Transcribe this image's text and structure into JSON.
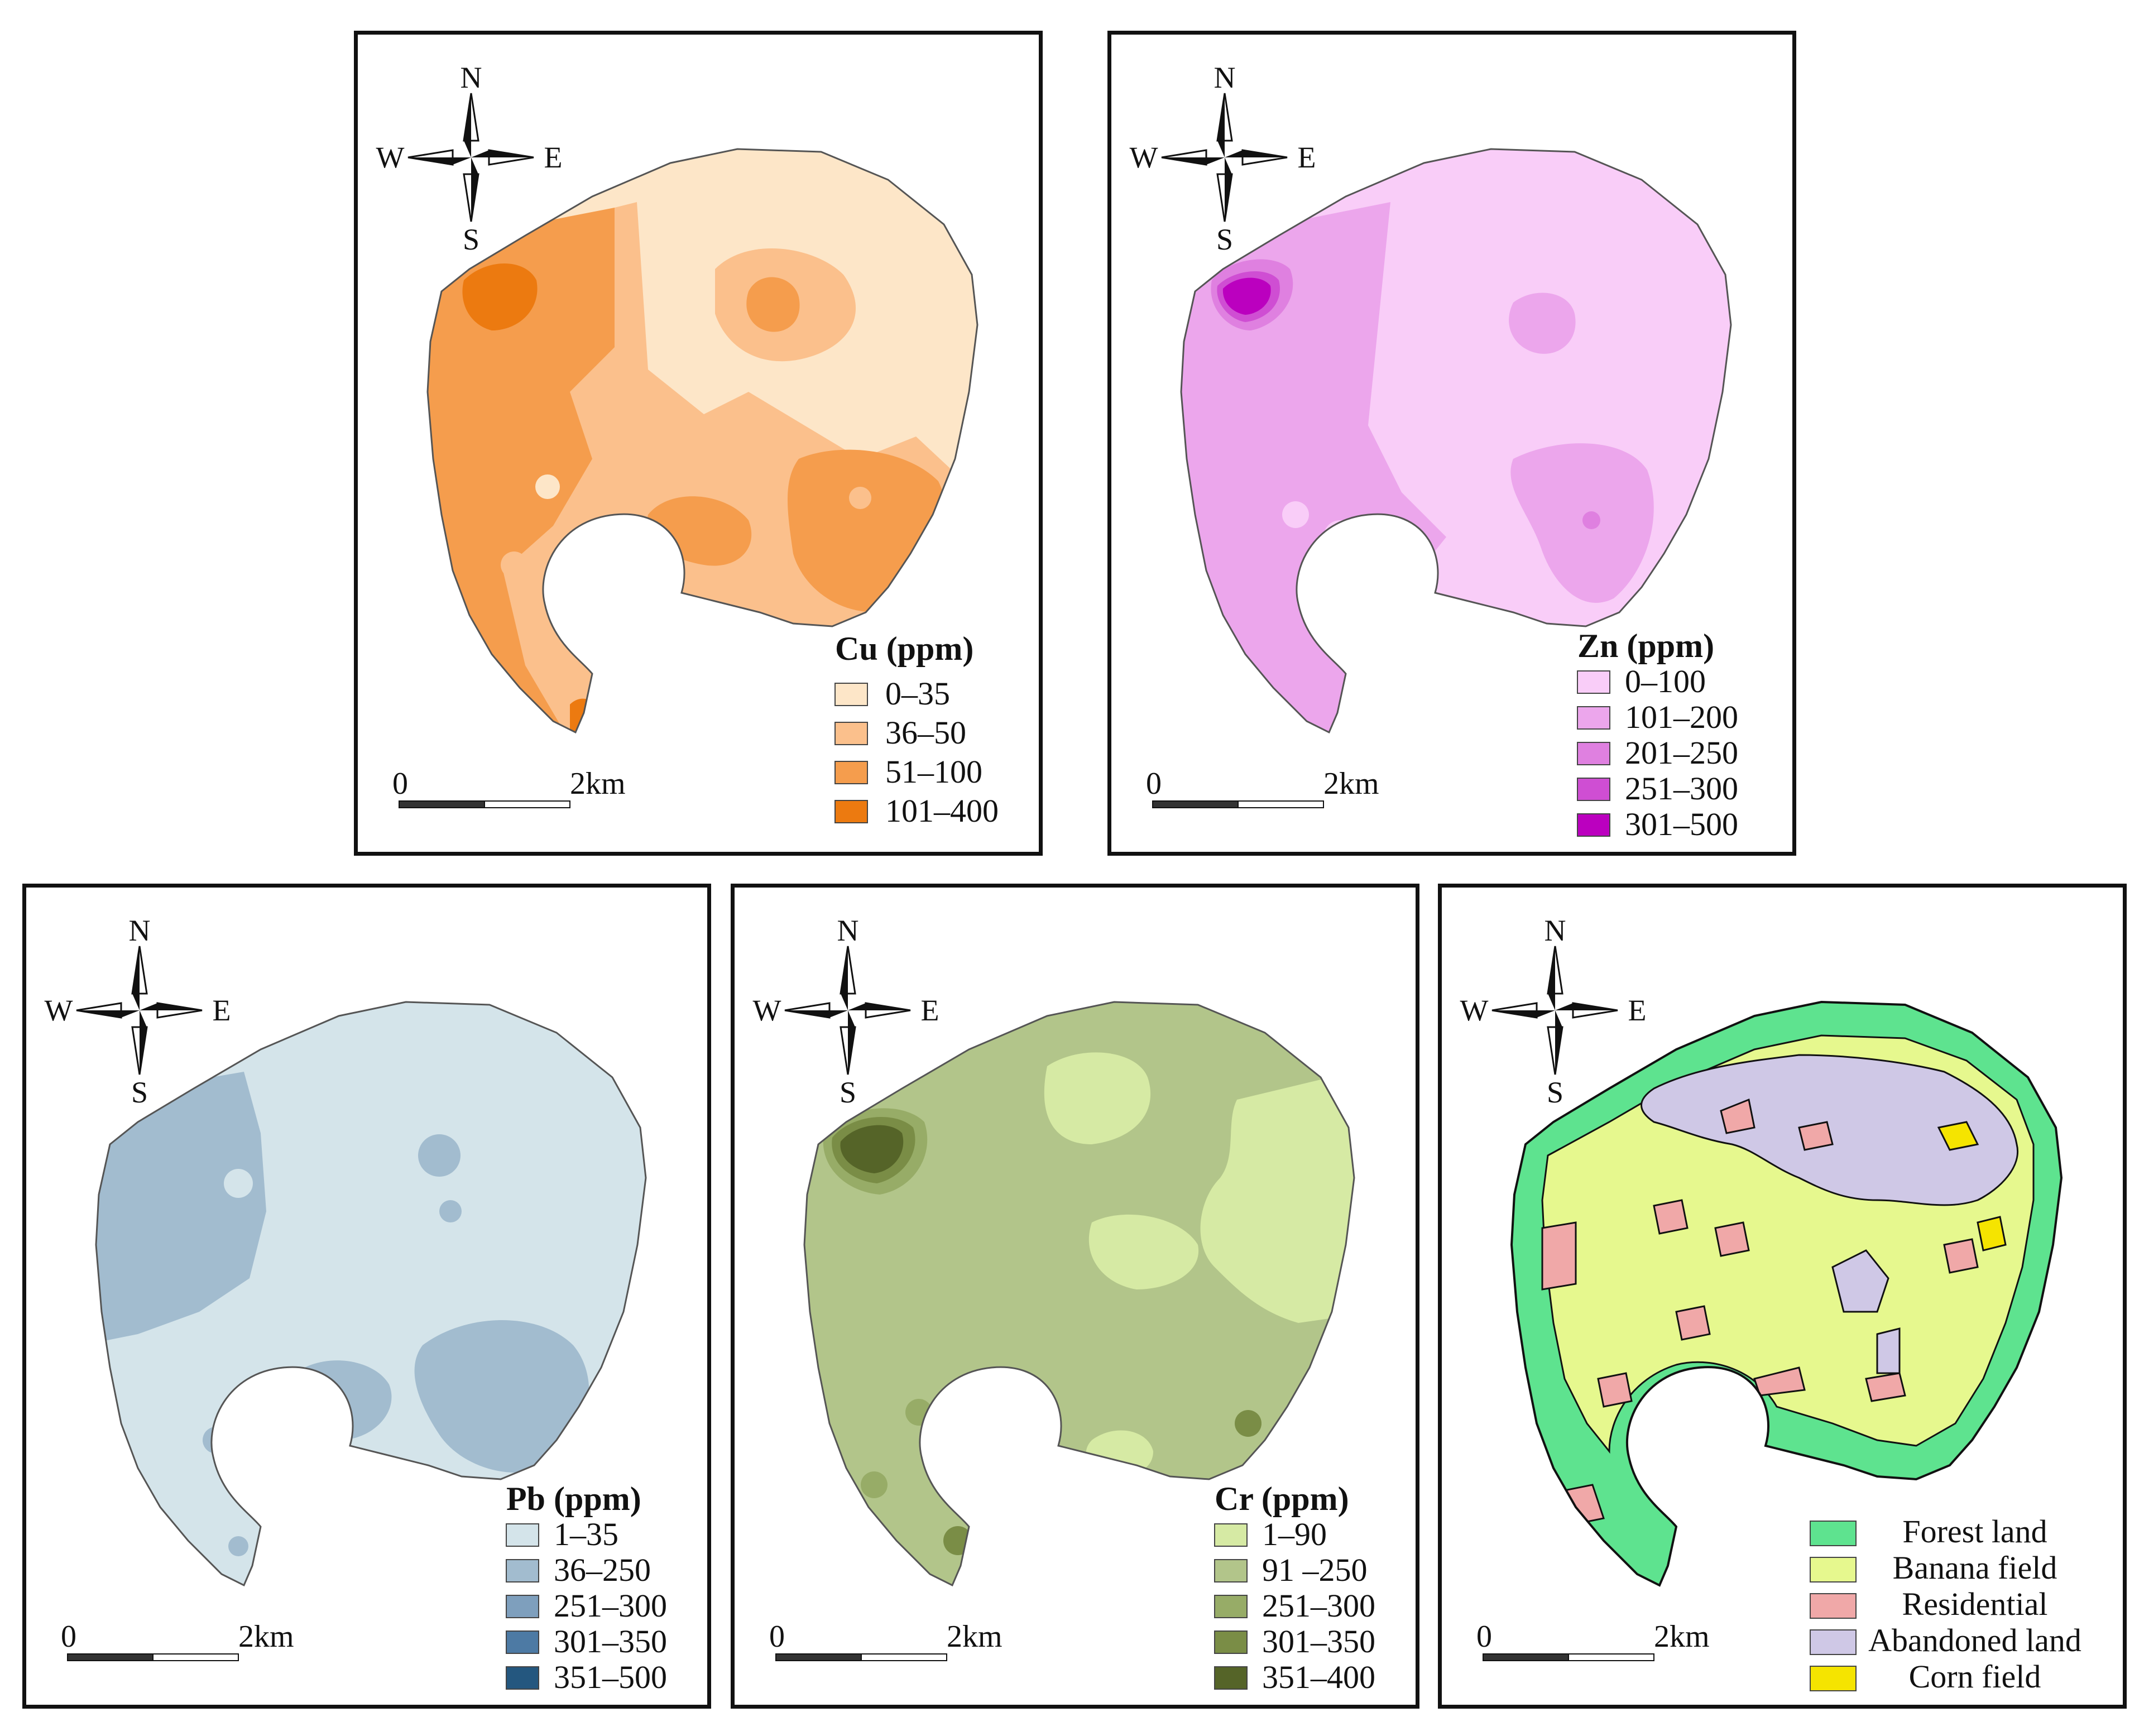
{
  "compass": {
    "n": "N",
    "s": "S",
    "e": "E",
    "w": "W"
  },
  "scalebar": {
    "start": "0",
    "end": "2km"
  },
  "panels": {
    "cu": {
      "legend_title": "Cu (ppm)",
      "classes": [
        {
          "label": "0–35",
          "color": "#fde6c8"
        },
        {
          "label": "36–50",
          "color": "#fbc08c"
        },
        {
          "label": "51–100",
          "color": "#f59d4d"
        },
        {
          "label": "101–400",
          "color": "#ec7a10"
        }
      ]
    },
    "zn": {
      "legend_title": "Zn (ppm)",
      "classes": [
        {
          "label": "0–100",
          "color": "#f9cdf8"
        },
        {
          "label": "101–200",
          "color": "#eca6ec"
        },
        {
          "label": "201–250",
          "color": "#df80e0"
        },
        {
          "label": "251–300",
          "color": "#cf4ed3"
        },
        {
          "label": "301–500",
          "color": "#bb00bf"
        }
      ]
    },
    "pb": {
      "legend_title": "Pb (ppm)",
      "classes": [
        {
          "label": "1–35",
          "color": "#d4e4ea"
        },
        {
          "label": "36–250",
          "color": "#a2bccf"
        },
        {
          "label": "251–300",
          "color": "#7e9fbd"
        },
        {
          "label": "301–350",
          "color": "#4d7aa4"
        },
        {
          "label": "351–500",
          "color": "#24577f"
        }
      ]
    },
    "cr": {
      "legend_title": "Cr (ppm)",
      "classes": [
        {
          "label": "1–90",
          "color": "#d6eaa4"
        },
        {
          "label": "91 –250",
          "color": "#b2c58a"
        },
        {
          "label": "251–300",
          "color": "#97ac67"
        },
        {
          "label": "301–350",
          "color": "#7a8d46"
        },
        {
          "label": "351–400",
          "color": "#556428"
        }
      ]
    },
    "landuse": {
      "legend_title": "",
      "classes": [
        {
          "label": "Forest land",
          "color": "#5ee38f"
        },
        {
          "label": "Banana field",
          "color": "#e6f88e"
        },
        {
          "label": "Residential",
          "color": "#f0a8a8"
        },
        {
          "label": "Abandoned land",
          "color": "#cfc8e6"
        },
        {
          "label": "Corn field",
          "color": "#f5e400"
        }
      ]
    }
  }
}
